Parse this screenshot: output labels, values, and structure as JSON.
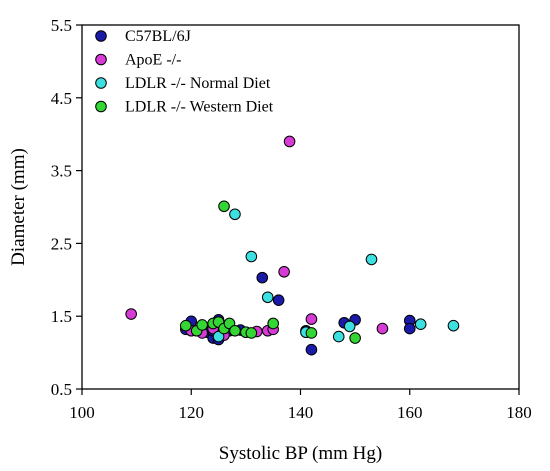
{
  "chart_data": {
    "type": "scatter",
    "xlabel": "Systolic BP (mm Hg)",
    "ylabel": "Diameter (mm)",
    "xlim": [
      100,
      180
    ],
    "ylim": [
      0.5,
      5.5
    ],
    "x_ticks": [
      "100",
      "120",
      "140",
      "160",
      "180"
    ],
    "y_ticks": [
      "0.5",
      "1.5",
      "2.5",
      "3.5",
      "4.5",
      "5.5"
    ],
    "x_tick_values": [
      100,
      120,
      140,
      160,
      180
    ],
    "y_tick_values": [
      0.5,
      1.5,
      2.5,
      3.5,
      4.5,
      5.5
    ],
    "grid": false,
    "legend_position": "top-left",
    "series": [
      {
        "name": "C57BL/6J",
        "color": "#1a1aa8",
        "points": [
          {
            "x": 119,
            "y": 1.32
          },
          {
            "x": 120,
            "y": 1.43
          },
          {
            "x": 121,
            "y": 1.3
          },
          {
            "x": 122,
            "y": 1.36
          },
          {
            "x": 123,
            "y": 1.28
          },
          {
            "x": 124,
            "y": 1.2
          },
          {
            "x": 124,
            "y": 1.3
          },
          {
            "x": 125,
            "y": 1.45
          },
          {
            "x": 125,
            "y": 1.18
          },
          {
            "x": 126,
            "y": 1.36
          },
          {
            "x": 127,
            "y": 1.3
          },
          {
            "x": 129,
            "y": 1.31
          },
          {
            "x": 133,
            "y": 2.03
          },
          {
            "x": 136,
            "y": 1.72
          },
          {
            "x": 141,
            "y": 1.3
          },
          {
            "x": 142,
            "y": 1.04
          },
          {
            "x": 148,
            "y": 1.41
          },
          {
            "x": 150,
            "y": 1.45
          },
          {
            "x": 160,
            "y": 1.44
          },
          {
            "x": 160,
            "y": 1.33
          }
        ]
      },
      {
        "name": "ApoE -/-",
        "color": "#d63bd6",
        "points": [
          {
            "x": 109,
            "y": 1.53
          },
          {
            "x": 120,
            "y": 1.3
          },
          {
            "x": 122,
            "y": 1.27
          },
          {
            "x": 124,
            "y": 1.33
          },
          {
            "x": 126,
            "y": 1.24
          },
          {
            "x": 127,
            "y": 1.34
          },
          {
            "x": 132,
            "y": 1.29
          },
          {
            "x": 134,
            "y": 1.3
          },
          {
            "x": 135,
            "y": 1.32
          },
          {
            "x": 137,
            "y": 2.11
          },
          {
            "x": 138,
            "y": 3.9
          },
          {
            "x": 142,
            "y": 1.46
          },
          {
            "x": 155,
            "y": 1.33
          }
        ]
      },
      {
        "name": "LDLR -/- Normal Diet",
        "color": "#3de0e0",
        "points": [
          {
            "x": 125,
            "y": 1.22
          },
          {
            "x": 128,
            "y": 2.9
          },
          {
            "x": 131,
            "y": 2.32
          },
          {
            "x": 134,
            "y": 1.76
          },
          {
            "x": 141,
            "y": 1.28
          },
          {
            "x": 147,
            "y": 1.22
          },
          {
            "x": 149,
            "y": 1.36
          },
          {
            "x": 153,
            "y": 2.28
          },
          {
            "x": 162,
            "y": 1.39
          },
          {
            "x": 168,
            "y": 1.37
          }
        ]
      },
      {
        "name": "LDLR -/- Western Diet",
        "color": "#33d633",
        "points": [
          {
            "x": 119,
            "y": 1.37
          },
          {
            "x": 121,
            "y": 1.3
          },
          {
            "x": 122,
            "y": 1.38
          },
          {
            "x": 124,
            "y": 1.4
          },
          {
            "x": 125,
            "y": 1.42
          },
          {
            "x": 126,
            "y": 3.01
          },
          {
            "x": 126,
            "y": 1.33
          },
          {
            "x": 127,
            "y": 1.4
          },
          {
            "x": 128,
            "y": 1.3
          },
          {
            "x": 130,
            "y": 1.28
          },
          {
            "x": 131,
            "y": 1.27
          },
          {
            "x": 135,
            "y": 1.4
          },
          {
            "x": 142,
            "y": 1.27
          },
          {
            "x": 150,
            "y": 1.2
          }
        ]
      }
    ]
  }
}
